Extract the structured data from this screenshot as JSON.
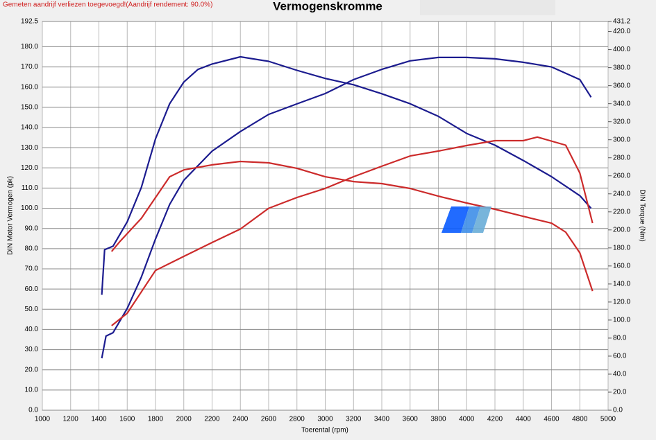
{
  "chart_data": {
    "type": "line",
    "title": "Vermogenskromme",
    "annotation": "Gemeten aandrijf verliezen toegevoegd!(Aandrijf rendement: 90.0%)",
    "xlabel": "Toerental (rpm)",
    "ylabel": "DIN Motor Vermogen (pk)",
    "y2label": "DIN Torque (Nm)",
    "xlim": [
      1000,
      5000
    ],
    "xticks": [
      1000,
      1200,
      1400,
      1600,
      1800,
      2000,
      2200,
      2400,
      2600,
      2800,
      3000,
      3200,
      3400,
      3600,
      3800,
      4000,
      4200,
      4400,
      4600,
      4800,
      5000
    ],
    "ylim": [
      0,
      192.5
    ],
    "yticks": [
      {
        "value": 0,
        "label": "0.0"
      },
      {
        "value": 10,
        "label": "10.0"
      },
      {
        "value": 20,
        "label": "20.0"
      },
      {
        "value": 30,
        "label": "30.0"
      },
      {
        "value": 40,
        "label": "40.0"
      },
      {
        "value": 50,
        "label": "50.0"
      },
      {
        "value": 60,
        "label": "60.0"
      },
      {
        "value": 70,
        "label": "70.0"
      },
      {
        "value": 80,
        "label": "80.0"
      },
      {
        "value": 90,
        "label": "90.0"
      },
      {
        "value": 100,
        "label": "100.0"
      },
      {
        "value": 110,
        "label": "110.0"
      },
      {
        "value": 120,
        "label": "120.0"
      },
      {
        "value": 130,
        "label": "130.0"
      },
      {
        "value": 140,
        "label": "140.0"
      },
      {
        "value": 150,
        "label": "150.0"
      },
      {
        "value": 160,
        "label": "160.0"
      },
      {
        "value": 170,
        "label": "170.0"
      },
      {
        "value": 180,
        "label": "180.0"
      },
      192.5
    ],
    "y2lim": [
      0,
      431.2
    ],
    "y2ticks": [
      {
        "value": 0,
        "label": "0.0"
      },
      {
        "value": 20,
        "label": "20.0"
      },
      {
        "value": 40,
        "label": "40.0"
      },
      {
        "value": 60,
        "label": "60.0"
      },
      {
        "value": 80,
        "label": "80.0"
      },
      {
        "value": 100,
        "label": "100.0"
      },
      {
        "value": 120,
        "label": "120.0"
      },
      {
        "value": 140,
        "label": "140.0"
      },
      {
        "value": 160,
        "label": "160.0"
      },
      {
        "value": 180,
        "label": "180.0"
      },
      {
        "value": 200,
        "label": "200.0"
      },
      {
        "value": 220,
        "label": "220.0"
      },
      {
        "value": 240,
        "label": "240.0"
      },
      {
        "value": 260,
        "label": "260.0"
      },
      {
        "value": 280,
        "label": "280.0"
      },
      {
        "value": 300,
        "label": "300.0"
      },
      {
        "value": 320,
        "label": "320.0"
      },
      {
        "value": 340,
        "label": "340.0"
      },
      {
        "value": 360,
        "label": "360.0"
      },
      {
        "value": 380,
        "label": "380.0"
      },
      {
        "value": 400,
        "label": "400.0"
      },
      {
        "value": 420,
        "label": "420.0"
      },
      431.2
    ],
    "grid": true,
    "series": [
      {
        "color": "#1c1c8f",
        "axis": "y2",
        "x": [
          1420,
          1440,
          1500,
          1600,
          1700,
          1800,
          1900,
          2000,
          2100,
          2200,
          2400,
          2600,
          2800,
          3000,
          3200,
          3400,
          3600,
          3800,
          4000,
          4200,
          4400,
          4600,
          4800,
          4880
        ],
        "values": [
          128,
          178,
          182,
          209,
          247,
          301,
          340,
          364,
          378,
          384,
          392,
          387,
          377,
          368,
          361,
          351,
          340,
          326,
          307,
          294,
          277,
          259,
          238,
          224
        ]
      },
      {
        "color": "#1c1c8f",
        "x": [
          1420,
          1450,
          1500,
          1600,
          1700,
          1800,
          1900,
          2000,
          2200,
          2400,
          2600,
          2800,
          3000,
          3200,
          3400,
          3600,
          3800,
          4000,
          4200,
          4400,
          4600,
          4800,
          4880
        ],
        "values": [
          25.7,
          36.7,
          38.4,
          50.4,
          65.9,
          84.8,
          101.9,
          113.9,
          128.3,
          138,
          146.5,
          151.7,
          156.8,
          163.7,
          168.8,
          173,
          174.7,
          174.7,
          174,
          172.3,
          170,
          163.7,
          155
        ]
      },
      {
        "color": "#cc2b2b",
        "axis": "y2",
        "x": [
          1490,
          1600,
          1800,
          2000,
          2200,
          2400,
          2600,
          2800,
          3000,
          3200,
          3400,
          3600,
          3800,
          4000,
          4200,
          4400,
          4500,
          4700,
          4800,
          4890
        ],
        "values": [
          93.8,
          107.6,
          155,
          170.6,
          186,
          201,
          224,
          236,
          246,
          259,
          270.6,
          282,
          287.5,
          293.6,
          299,
          299,
          303,
          294,
          263,
          207.5
        ]
      },
      {
        "color": "#cc2b2b",
        "x": [
          1490,
          1550,
          1700,
          1900,
          2000,
          2200,
          2400,
          2600,
          2800,
          3000,
          3200,
          3400,
          3600,
          3800,
          4000,
          4200,
          4400,
          4600,
          4700,
          4800,
          4890
        ],
        "values": [
          78.6,
          83.7,
          95,
          115.6,
          119,
          121.5,
          123.2,
          122.5,
          119.8,
          115.6,
          113.2,
          112.2,
          109.8,
          106,
          102.6,
          99.5,
          96,
          92.6,
          88.2,
          77.9,
          59
        ]
      }
    ]
  }
}
